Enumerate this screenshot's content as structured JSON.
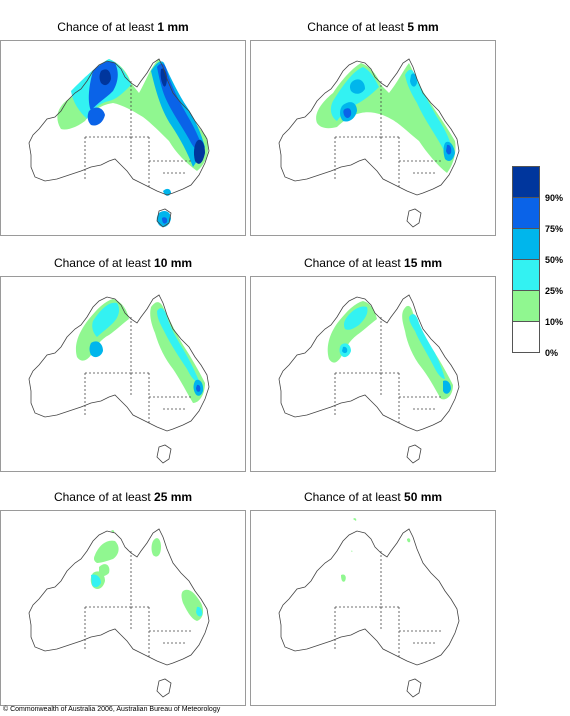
{
  "panels": [
    {
      "title_prefix": "Chance of at least ",
      "threshold": "1 mm"
    },
    {
      "title_prefix": "Chance of at least ",
      "threshold": "5 mm"
    },
    {
      "title_prefix": "Chance of at least ",
      "threshold": "10 mm"
    },
    {
      "title_prefix": "Chance of at least ",
      "threshold": "15 mm"
    },
    {
      "title_prefix": "Chance of at least ",
      "threshold": "25 mm"
    },
    {
      "title_prefix": "Chance of at least ",
      "threshold": "50 mm"
    }
  ],
  "legend": {
    "labels": [
      "90%",
      "75%",
      "50%",
      "25%",
      "10%",
      "0%"
    ],
    "colors": {
      "90_100": "#00369d",
      "75_90": "#0a63e8",
      "50_75": "#00b6ec",
      "25_50": "#33f2f2",
      "10_25": "#90f790",
      "0_10": "#ffffff"
    }
  },
  "copyright": "© Commonwealth of Australia 2006, Australian Bureau of Meteorology"
}
